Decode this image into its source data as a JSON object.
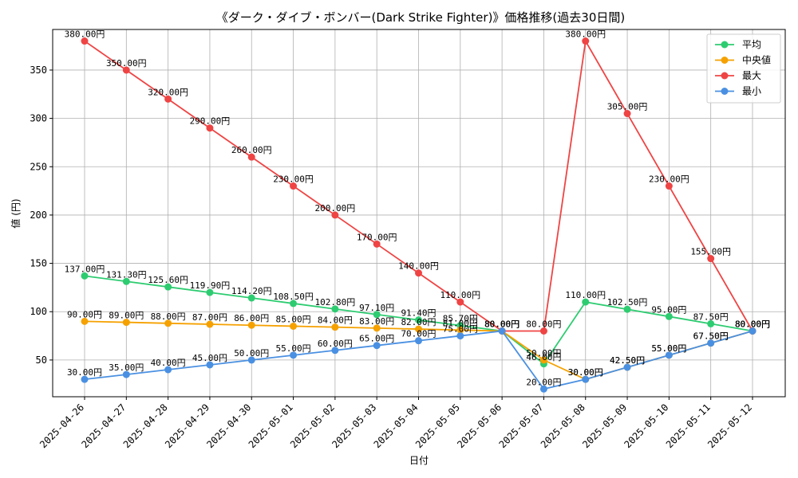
{
  "chart_data": {
    "type": "line",
    "title": "《ダーク・ダイブ・ボンバー(Dark Strike Fighter)》価格推移(過去30日間)",
    "xlabel": "日付",
    "ylabel": "値 (円)",
    "ylim": [
      12,
      392
    ],
    "yticks": [
      50,
      100,
      150,
      200,
      250,
      300,
      350
    ],
    "grid": true,
    "legend_position": "top-right",
    "label_suffix": "円",
    "categories": [
      "2025-04-26",
      "2025-04-27",
      "2025-04-28",
      "2025-04-29",
      "2025-04-30",
      "2025-05-01",
      "2025-05-02",
      "2025-05-03",
      "2025-05-04",
      "2025-05-05",
      "2025-05-06",
      "2025-05-07",
      "2025-05-08",
      "2025-05-09",
      "2025-05-10",
      "2025-05-11",
      "2025-05-12"
    ],
    "series": [
      {
        "name": "平均",
        "color": "#2ecc71",
        "values": [
          137.0,
          131.3,
          125.6,
          119.9,
          114.2,
          108.5,
          102.8,
          97.1,
          91.4,
          85.7,
          80.0,
          46.0,
          110.0,
          102.5,
          95.0,
          87.5,
          80.0
        ]
      },
      {
        "name": "中央値",
        "color": "#f5a100",
        "values": [
          90.0,
          89.0,
          88.0,
          87.0,
          86.0,
          85.0,
          84.0,
          83.0,
          82.0,
          81.0,
          80.0,
          50.0,
          30.0,
          42.5,
          55.0,
          67.5,
          80.0
        ]
      },
      {
        "name": "最大",
        "color": "#ef4444",
        "values": [
          380.0,
          350.0,
          320.0,
          290.0,
          260.0,
          230.0,
          200.0,
          170.0,
          140.0,
          110.0,
          80.0,
          80.0,
          380.0,
          305.0,
          230.0,
          155.0,
          80.0
        ]
      },
      {
        "name": "最小",
        "color": "#4a90e2",
        "values": [
          30.0,
          35.0,
          40.0,
          45.0,
          50.0,
          55.0,
          60.0,
          65.0,
          70.0,
          75.0,
          80.0,
          20.0,
          30.0,
          42.5,
          55.0,
          67.5,
          80.0
        ]
      }
    ]
  }
}
